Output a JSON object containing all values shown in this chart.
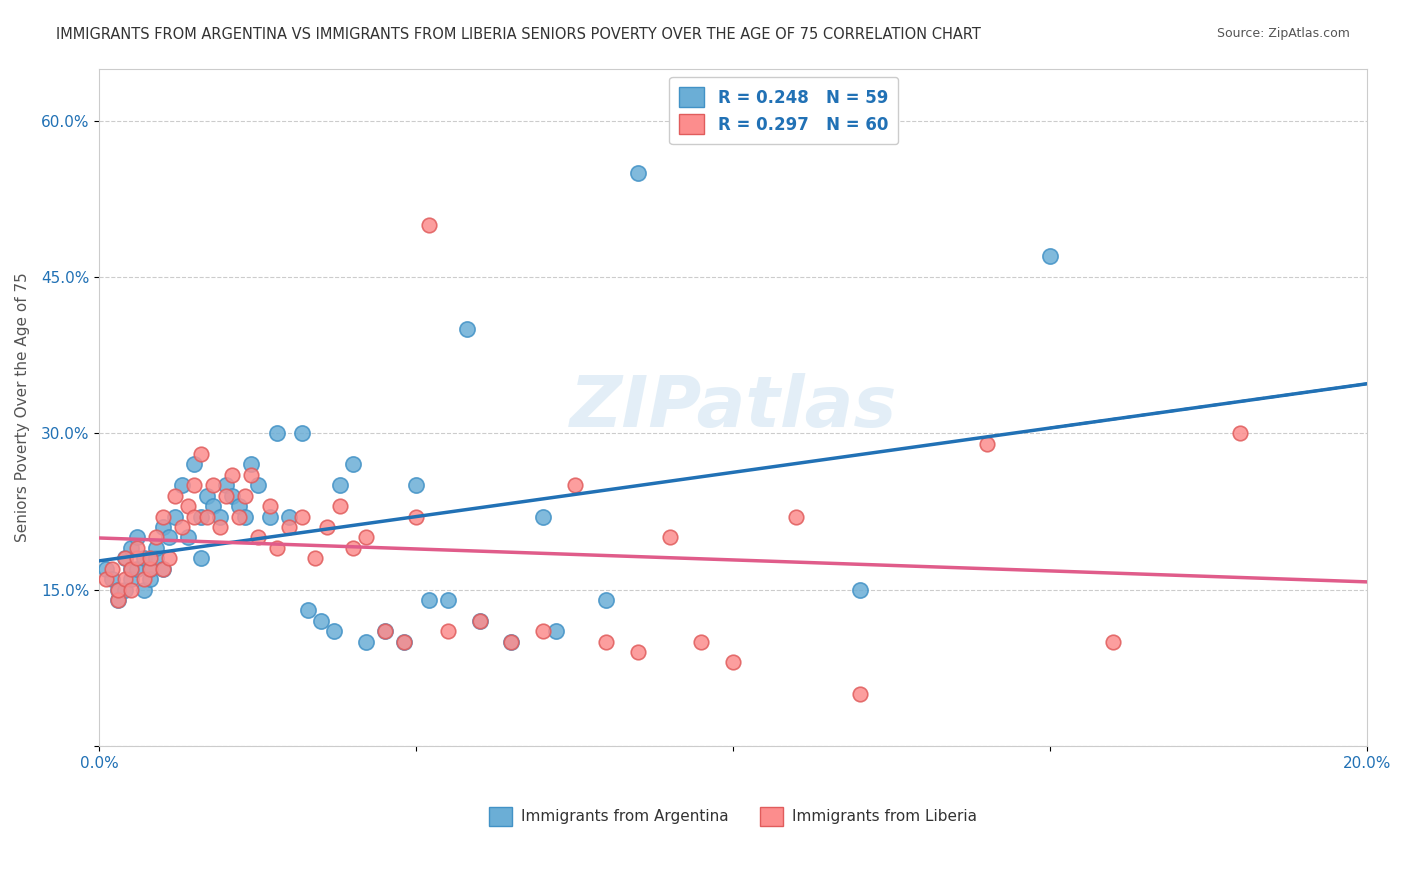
{
  "title": "IMMIGRANTS FROM ARGENTINA VS IMMIGRANTS FROM LIBERIA SENIORS POVERTY OVER THE AGE OF 75 CORRELATION CHART",
  "source": "Source: ZipAtlas.com",
  "ylabel": "Seniors Poverty Over the Age of 75",
  "xlim": [
    0.0,
    0.2
  ],
  "ylim": [
    0.0,
    0.65
  ],
  "yticks": [
    0.0,
    0.15,
    0.3,
    0.45,
    0.6
  ],
  "ytick_labels": [
    "",
    "15.0%",
    "30.0%",
    "45.0%",
    "60.0%"
  ],
  "xticks": [
    0.0,
    0.05,
    0.1,
    0.15,
    0.2
  ],
  "xtick_labels": [
    "0.0%",
    "",
    "",
    "",
    "20.0%"
  ],
  "argentina_color": "#6baed6",
  "liberia_color": "#fc8d8d",
  "argentina_edge": "#4292c6",
  "liberia_edge": "#e05c5c",
  "regression_argentina_color": "#2171b5",
  "regression_liberia_color": "#e05c8a",
  "R_argentina": 0.248,
  "N_argentina": 59,
  "R_liberia": 0.297,
  "N_liberia": 60,
  "background_color": "#ffffff",
  "grid_color": "#cccccc",
  "title_color": "#333333",
  "axis_label_color": "#2171b5",
  "legend_label_color": "#2171b5",
  "watermark": "ZIPatlas",
  "argentina_x": [
    0.001,
    0.002,
    0.003,
    0.003,
    0.004,
    0.004,
    0.005,
    0.005,
    0.005,
    0.006,
    0.006,
    0.007,
    0.007,
    0.008,
    0.008,
    0.009,
    0.009,
    0.01,
    0.01,
    0.011,
    0.012,
    0.013,
    0.014,
    0.015,
    0.016,
    0.016,
    0.017,
    0.018,
    0.019,
    0.02,
    0.021,
    0.022,
    0.023,
    0.024,
    0.025,
    0.027,
    0.028,
    0.03,
    0.032,
    0.033,
    0.035,
    0.037,
    0.038,
    0.04,
    0.042,
    0.045,
    0.048,
    0.05,
    0.052,
    0.055,
    0.058,
    0.06,
    0.065,
    0.07,
    0.072,
    0.08,
    0.085,
    0.12,
    0.15
  ],
  "argentina_y": [
    0.17,
    0.16,
    0.15,
    0.14,
    0.18,
    0.15,
    0.17,
    0.19,
    0.16,
    0.2,
    0.17,
    0.18,
    0.15,
    0.16,
    0.17,
    0.18,
    0.19,
    0.21,
    0.17,
    0.2,
    0.22,
    0.25,
    0.2,
    0.27,
    0.18,
    0.22,
    0.24,
    0.23,
    0.22,
    0.25,
    0.24,
    0.23,
    0.22,
    0.27,
    0.25,
    0.22,
    0.3,
    0.22,
    0.3,
    0.13,
    0.12,
    0.11,
    0.25,
    0.27,
    0.1,
    0.11,
    0.1,
    0.25,
    0.14,
    0.14,
    0.4,
    0.12,
    0.1,
    0.22,
    0.11,
    0.14,
    0.55,
    0.15,
    0.47
  ],
  "liberia_x": [
    0.001,
    0.002,
    0.003,
    0.003,
    0.004,
    0.004,
    0.005,
    0.005,
    0.006,
    0.006,
    0.007,
    0.008,
    0.008,
    0.009,
    0.01,
    0.01,
    0.011,
    0.012,
    0.013,
    0.014,
    0.015,
    0.015,
    0.016,
    0.017,
    0.018,
    0.019,
    0.02,
    0.021,
    0.022,
    0.023,
    0.024,
    0.025,
    0.027,
    0.028,
    0.03,
    0.032,
    0.034,
    0.036,
    0.038,
    0.04,
    0.042,
    0.045,
    0.048,
    0.05,
    0.052,
    0.055,
    0.06,
    0.065,
    0.07,
    0.075,
    0.08,
    0.085,
    0.09,
    0.095,
    0.1,
    0.11,
    0.12,
    0.14,
    0.16,
    0.18
  ],
  "liberia_y": [
    0.16,
    0.17,
    0.14,
    0.15,
    0.18,
    0.16,
    0.17,
    0.15,
    0.18,
    0.19,
    0.16,
    0.17,
    0.18,
    0.2,
    0.17,
    0.22,
    0.18,
    0.24,
    0.21,
    0.23,
    0.25,
    0.22,
    0.28,
    0.22,
    0.25,
    0.21,
    0.24,
    0.26,
    0.22,
    0.24,
    0.26,
    0.2,
    0.23,
    0.19,
    0.21,
    0.22,
    0.18,
    0.21,
    0.23,
    0.19,
    0.2,
    0.11,
    0.1,
    0.22,
    0.5,
    0.11,
    0.12,
    0.1,
    0.11,
    0.25,
    0.1,
    0.09,
    0.2,
    0.1,
    0.08,
    0.22,
    0.05,
    0.29,
    0.1,
    0.3
  ]
}
